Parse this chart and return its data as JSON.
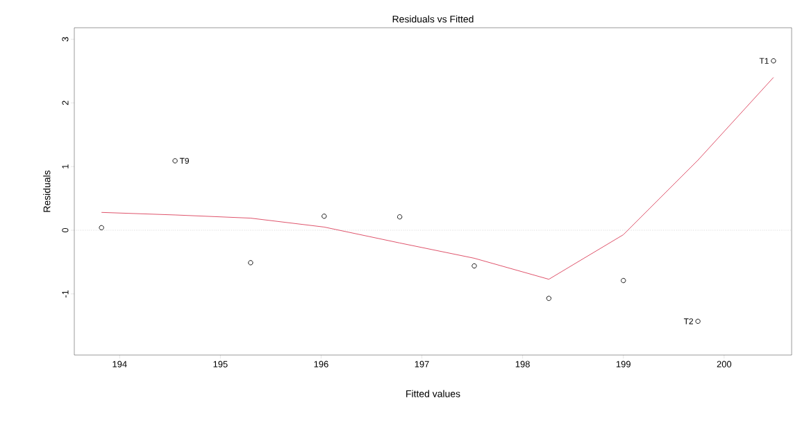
{
  "chart_data": {
    "type": "scatter",
    "title": "Residuals vs Fitted",
    "xlabel": "Fitted values",
    "ylabel": "Residuals",
    "xlim": [
      193.55,
      200.67
    ],
    "ylim": [
      -1.96,
      3.18
    ],
    "xticks": [
      194,
      195,
      196,
      197,
      198,
      199,
      200
    ],
    "yticks": [
      -1,
      0,
      1,
      2,
      3
    ],
    "series": [
      {
        "marker": "circle",
        "color": "#000000",
        "x": [
          193.82,
          194.55,
          195.3,
          196.03,
          196.78,
          197.52,
          198.26,
          199.0,
          199.74,
          200.49
        ],
        "values": [
          0.04,
          1.09,
          -0.51,
          0.22,
          0.21,
          -0.56,
          -1.07,
          -0.79,
          -1.43,
          2.66
        ]
      },
      {
        "type": "line",
        "color": "#df536b",
        "line_style": "solid",
        "x": [
          193.82,
          194.55,
          195.3,
          196.03,
          196.78,
          197.52,
          198.26,
          199.0,
          199.74,
          200.49
        ],
        "values": [
          0.28,
          0.24,
          0.19,
          0.05,
          -0.2,
          -0.44,
          -0.77,
          -0.07,
          1.1,
          2.4
        ]
      }
    ],
    "ref_lines": [
      {
        "axis": "y",
        "value": 0,
        "color": "#b3b3b3",
        "line_style": "dotted"
      }
    ],
    "annotations": [
      {
        "text": "T9",
        "x": 194.55,
        "y": 1.09
      },
      {
        "text": "T2",
        "x": 199.74,
        "y": -1.43
      },
      {
        "text": "T1",
        "x": 200.49,
        "y": 2.66
      }
    ]
  }
}
